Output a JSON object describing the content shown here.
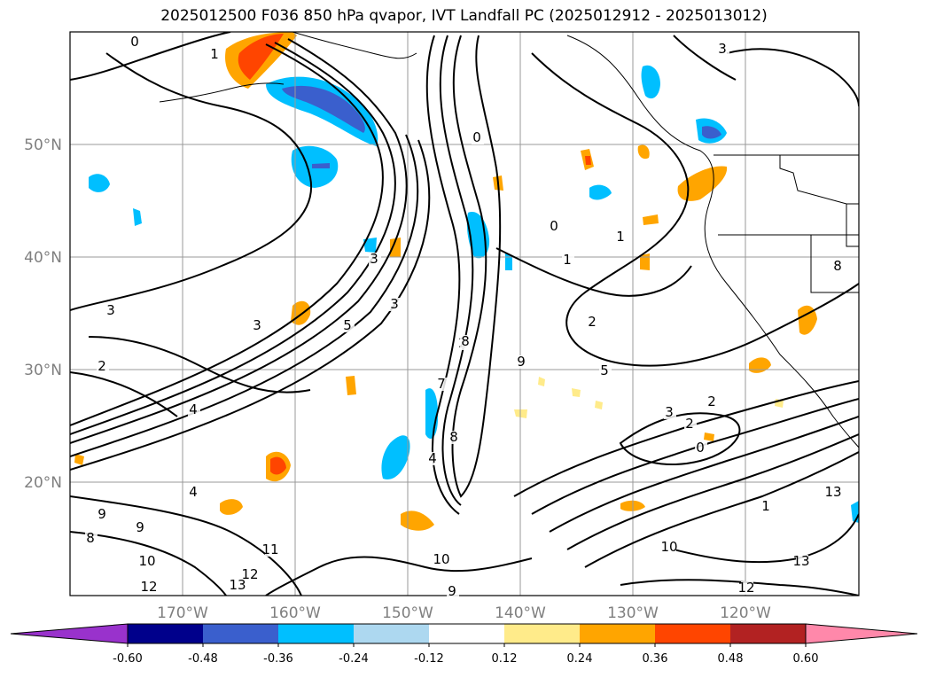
{
  "title": "2025012500 F036 850 hPa qvapor, IVT Landfall PC (2025012912 - 2025013012)",
  "lat_labels": [
    "50°N",
    "40°N",
    "30°N",
    "20°N"
  ],
  "lon_labels": [
    "170°W",
    "160°W",
    "150°W",
    "140°W",
    "130°W",
    "120°W"
  ],
  "contour_labels": [
    "0",
    "1",
    "3",
    "3",
    "2",
    "1",
    "0",
    "1",
    "0",
    "2",
    "3",
    "4",
    "5",
    "3",
    "3",
    "2",
    "4",
    "9",
    "9",
    "10",
    "12",
    "13",
    "12",
    "11",
    "8",
    "10",
    "9",
    "8",
    "4",
    "7",
    "8",
    "9",
    "5",
    "2",
    "3",
    "2",
    "0",
    "1",
    "10",
    "13",
    "12",
    "13",
    "8"
  ],
  "colorbar": {
    "ticks": [
      "-0.60",
      "-0.48",
      "-0.36",
      "-0.24",
      "-0.12",
      "0.12",
      "0.24",
      "0.36",
      "0.48",
      "0.60"
    ],
    "colors": [
      "#9932cc",
      "#00008b",
      "#3a5fcd",
      "#00bfff",
      "#add8f0",
      "#ffffff",
      "#ffeb8a",
      "#ffa500",
      "#ff4500",
      "#b22222",
      "#ff88aa"
    ]
  }
}
